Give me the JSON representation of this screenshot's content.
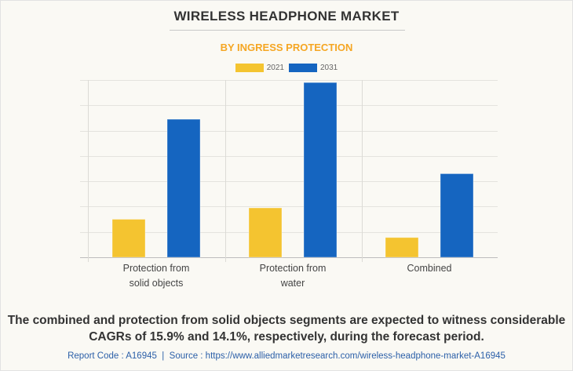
{
  "header": {
    "title": "WIRELESS HEADPHONE MARKET",
    "subtitle": "BY INGRESS PROTECTION"
  },
  "colors": {
    "series_2021": "#f4c430",
    "series_2031": "#1565c0",
    "subtitle": "#f5a623",
    "footer_link": "#2b5fa8"
  },
  "chart_data": {
    "type": "bar",
    "title": "WIRELESS HEADPHONE MARKET",
    "subtitle": "BY INGRESS PROTECTION",
    "categories": [
      [
        "Protection from",
        "solid objects"
      ],
      [
        "Protection from",
        "water"
      ],
      [
        "Combined"
      ]
    ],
    "category_names": [
      "Protection from solid objects",
      "Protection from water",
      "Combined"
    ],
    "series": [
      {
        "name": "2021",
        "color": "#f4c430",
        "values": [
          1.5,
          1.95,
          0.78
        ]
      },
      {
        "name": "2031",
        "color": "#1565c0",
        "values": [
          5.45,
          6.9,
          3.3
        ]
      }
    ],
    "xlabel": "",
    "ylabel": "",
    "ylim": [
      0,
      7
    ],
    "y_ticks_labeled": false,
    "grid": true,
    "legend_position": "top-center"
  },
  "caption": "The combined and protection from solid objects segments are expected to witness considerable CAGRs of 15.9% and 14.1%, respectively, during the forecast period.",
  "footer": {
    "text": "Report Code : A16945  |  Source : https://www.alliedmarketresearch.com/wireless-headphone-market-A16945"
  }
}
